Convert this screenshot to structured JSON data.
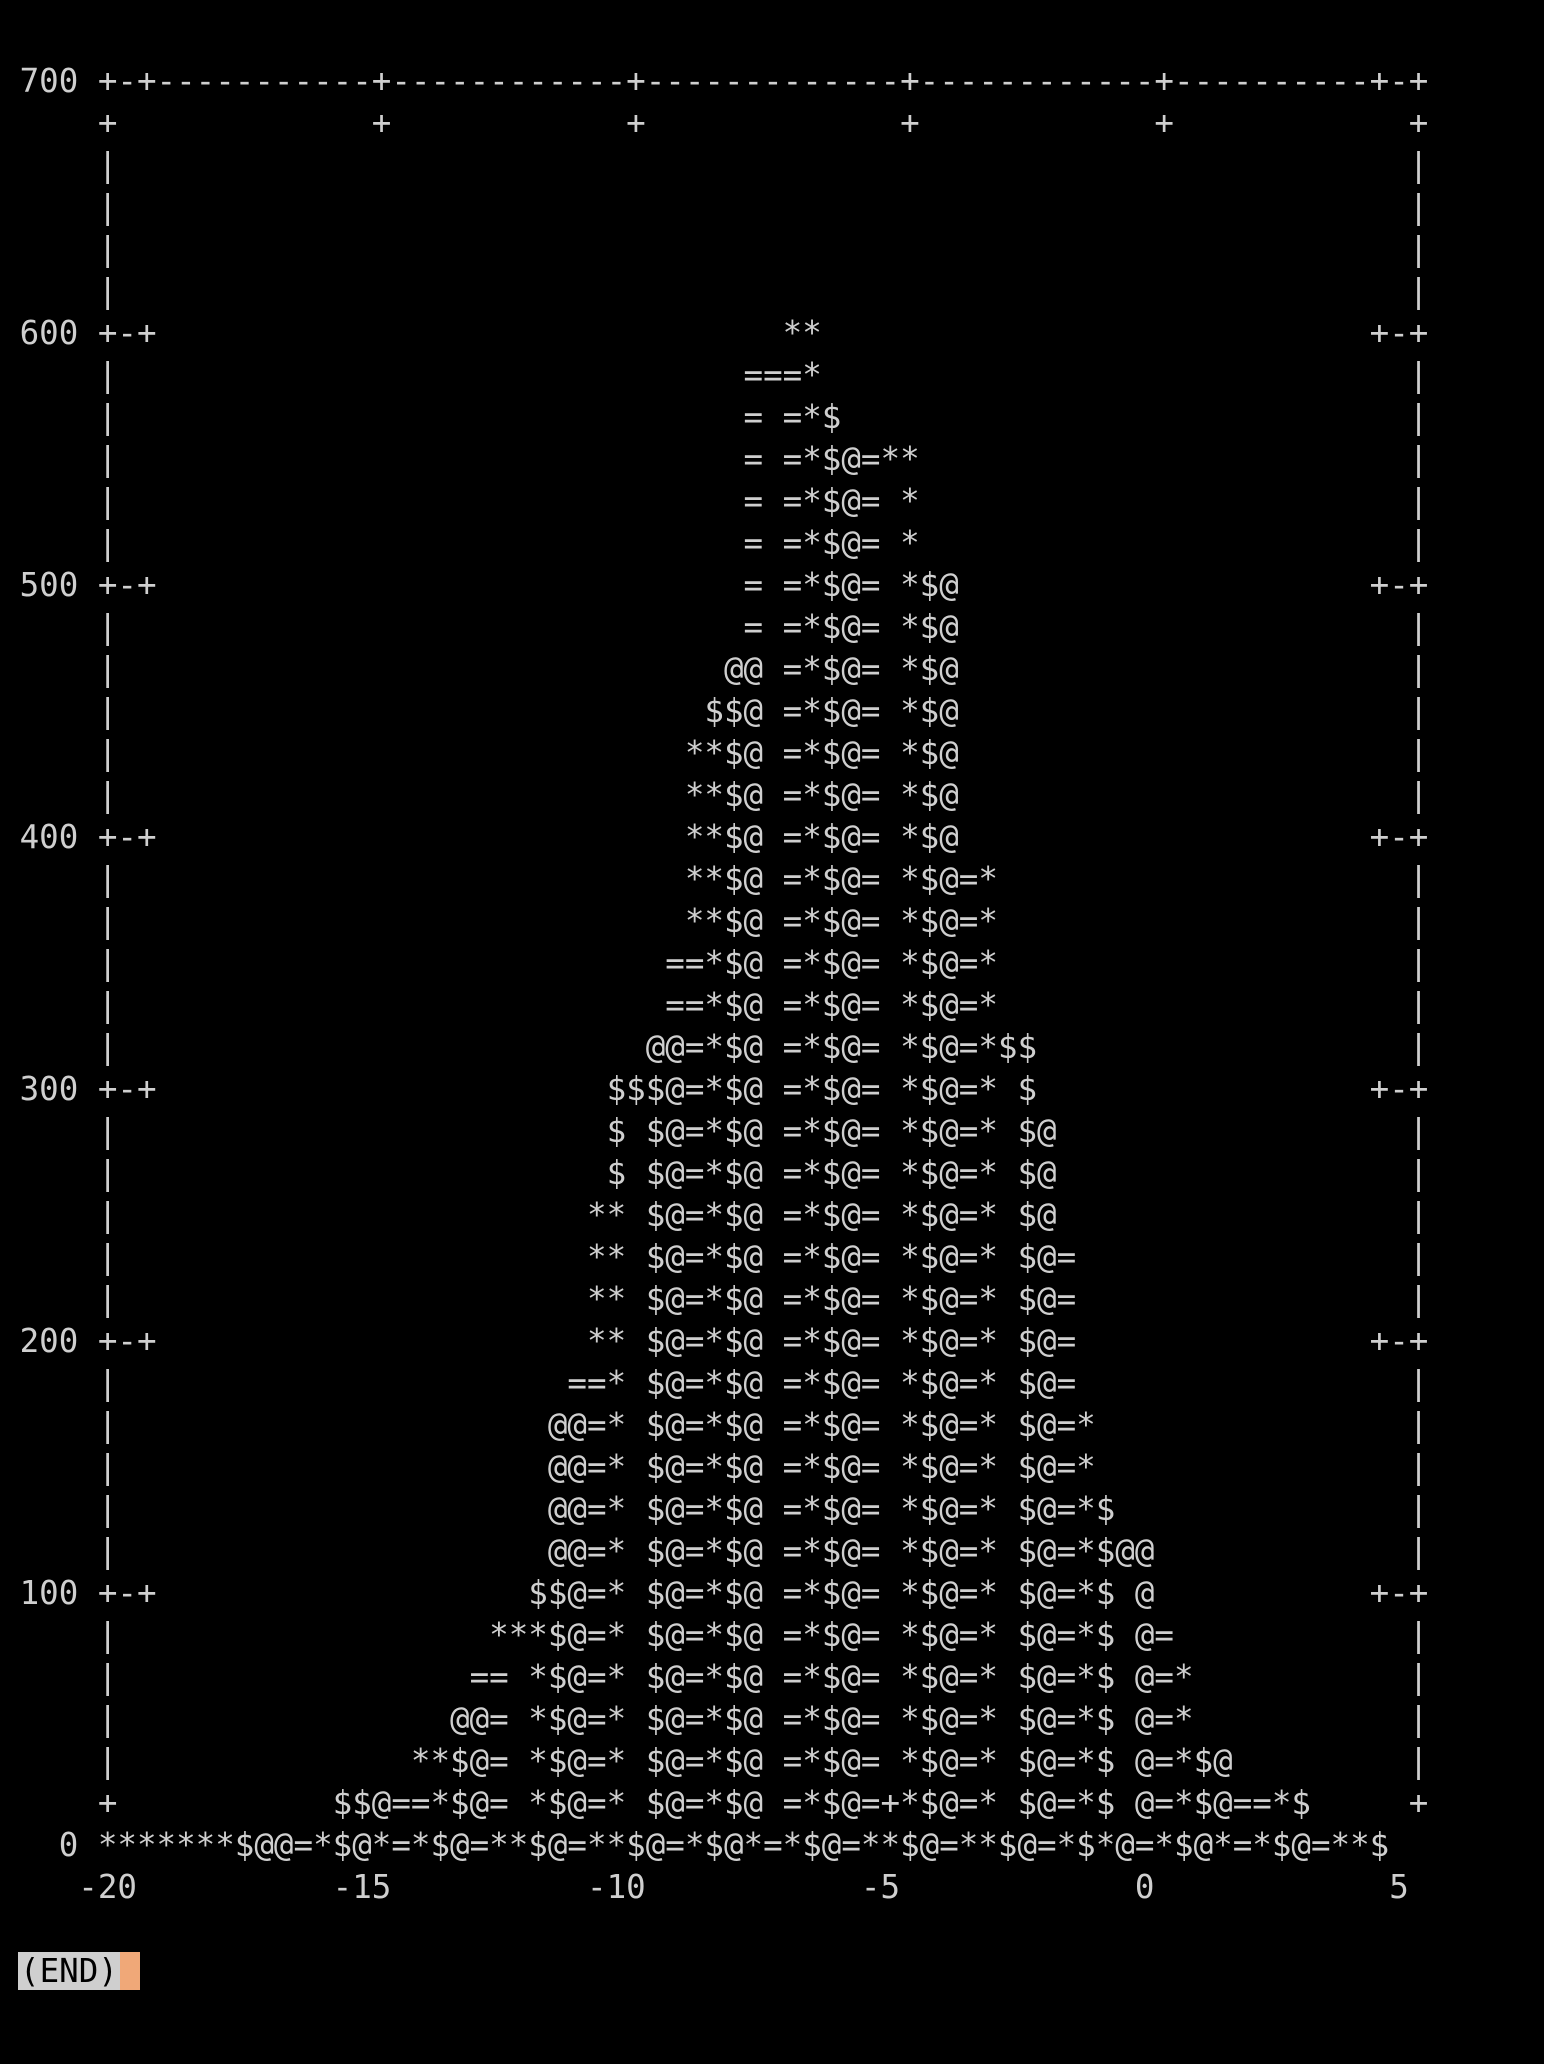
{
  "plot_lines": [
    " 700 +-+-----------+------------+-------------+------------+----------+-+",
    "     +             +            +             +            +            +",
    "     |                                                                  |",
    "     |                                                                  |",
    "     |                                                                  |",
    "     |                                                                  |",
    " 600 +-+                                **                            +-+",
    "     |                                ===*                              |",
    "     |                                = =*$                             |",
    "     |                                = =*$@=**                         |",
    "     |                                = =*$@= *                         |",
    "     |                                = =*$@= *                         |",
    " 500 +-+                              = =*$@= *$@                     +-+",
    "     |                                = =*$@= *$@                       |",
    "     |                               @@ =*$@= *$@                       |",
    "     |                              $$@ =*$@= *$@                       |",
    "     |                             **$@ =*$@= *$@                       |",
    "     |                             **$@ =*$@= *$@                       |",
    " 400 +-+                           **$@ =*$@= *$@                     +-+",
    "     |                             **$@ =*$@= *$@=*                     |",
    "     |                             **$@ =*$@= *$@=*                     |",
    "     |                            ==*$@ =*$@= *$@=*                     |",
    "     |                            ==*$@ =*$@= *$@=*                     |",
    "     |                           @@=*$@ =*$@= *$@=*$$                   |",
    " 300 +-+                       $$$@=*$@ =*$@= *$@=* $                 +-+",
    "     |                         $ $@=*$@ =*$@= *$@=* $@                  |",
    "     |                         $ $@=*$@ =*$@= *$@=* $@                  |",
    "     |                        ** $@=*$@ =*$@= *$@=* $@                  |",
    "     |                        ** $@=*$@ =*$@= *$@=* $@=                 |",
    "     |                        ** $@=*$@ =*$@= *$@=* $@=                 |",
    " 200 +-+                      ** $@=*$@ =*$@= *$@=* $@=               +-+",
    "     |                       ==* $@=*$@ =*$@= *$@=* $@=                 |",
    "     |                      @@=* $@=*$@ =*$@= *$@=* $@=*                |",
    "     |                      @@=* $@=*$@ =*$@= *$@=* $@=*                |",
    "     |                      @@=* $@=*$@ =*$@= *$@=* $@=*$               |",
    "     |                      @@=* $@=*$@ =*$@= *$@=* $@=*$@@             |",
    " 100 +-+                   $$@=* $@=*$@ =*$@= *$@=* $@=*$ @           +-+",
    "     |                   ***$@=* $@=*$@ =*$@= *$@=* $@=*$ @=            |",
    "     |                  == *$@=* $@=*$@ =*$@= *$@=* $@=*$ @=*           |",
    "     |                 @@= *$@=* $@=*$@ =*$@= *$@=* $@=*$ @=*           |",
    "     |               **$@= *$@=* $@=*$@ =*$@= *$@=* $@=*$ @=*$@         |",
    "     +           $$@==*$@= *$@=* $@=*$@ =*$@=+*$@=* $@=*$ @=*$@==*$     +",
    "   0 *******$@@=*$@*=*$@=**$@=**$@=*$@*=*$@=**$@=**$@=*$*@=*$@*=*$@=**$",
    "    -20          -15          -10           -5            0            5"
  ],
  "status": {
    "end_marker": "(END)"
  },
  "colors": {
    "background": "#000000",
    "foreground": "#cfcfcf",
    "cursor": "#f0a878"
  }
}
